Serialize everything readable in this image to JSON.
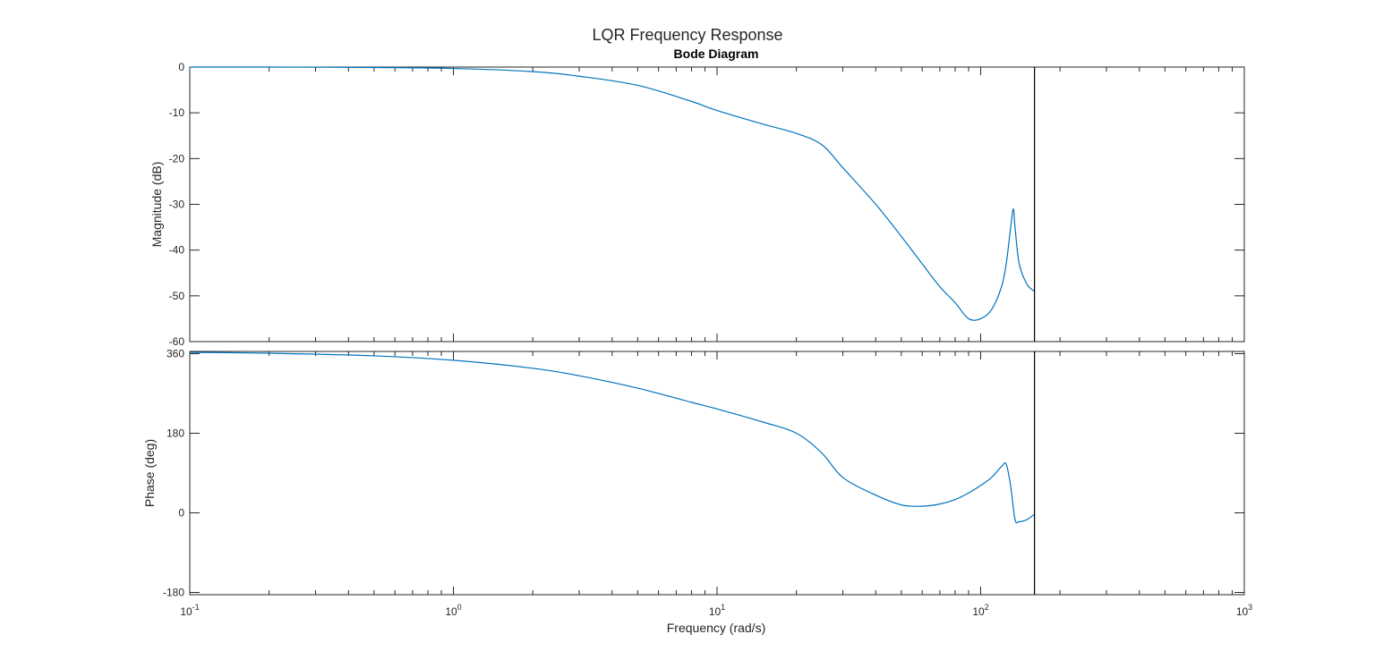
{
  "figure": {
    "title": "LQR Frequency Response",
    "subtitle": "Bode Diagram"
  },
  "colors": {
    "line": "#0072BD",
    "axes": "#262626",
    "marker_line": "#000000"
  },
  "chart_data": {
    "type": "line",
    "title": "LQR Frequency Response",
    "subtitle": "Bode Diagram",
    "xlabel": "Frequency  (rad/s)",
    "xscale": "log",
    "xlim": [
      0.1,
      1000
    ],
    "x_tick_labels": [
      {
        "base": "10",
        "exp": "-1",
        "value": 0.1
      },
      {
        "base": "10",
        "exp": "0",
        "value": 1
      },
      {
        "base": "10",
        "exp": "1",
        "value": 10
      },
      {
        "base": "10",
        "exp": "2",
        "value": 100
      },
      {
        "base": "10",
        "exp": "3",
        "value": 1000
      }
    ],
    "vertical_marker_x": 160,
    "grid": false,
    "panels": [
      {
        "name": "magnitude",
        "ylabel": "Magnitude (dB)",
        "ylim": [
          -60,
          0
        ],
        "yticks": [
          0,
          -10,
          -20,
          -30,
          -40,
          -50,
          -60
        ],
        "ytick_labels": [
          "0",
          "-10",
          "-20",
          "-30",
          "-40",
          "-50",
          "-60"
        ],
        "x": [
          0.1,
          0.2,
          0.5,
          1,
          2,
          3,
          5,
          8,
          10,
          15,
          20,
          25,
          30,
          40,
          50,
          60,
          70,
          80,
          90,
          100,
          110,
          120,
          125,
          130,
          133,
          135,
          140,
          150,
          160
        ],
        "y": [
          0,
          0,
          -0.1,
          -0.3,
          -1,
          -2,
          -4,
          -7.5,
          -9.5,
          -12.5,
          -14.5,
          -17,
          -22,
          -30,
          -37,
          -43,
          -48,
          -51.5,
          -55,
          -55,
          -53,
          -48,
          -43,
          -35,
          -31,
          -35,
          -43,
          -47.5,
          -49
        ]
      },
      {
        "name": "phase",
        "ylabel": "Phase (deg)",
        "ylim": [
          -185,
          365
        ],
        "yticks": [
          360,
          180,
          0,
          -180
        ],
        "ytick_labels": [
          "360",
          "180",
          "0",
          "-180"
        ],
        "x": [
          0.1,
          0.2,
          0.5,
          1,
          2,
          3,
          5,
          8,
          10,
          15,
          20,
          25,
          30,
          40,
          50,
          60,
          70,
          80,
          90,
          100,
          110,
          120,
          125,
          130,
          135,
          140,
          150,
          160
        ],
        "y": [
          363,
          361,
          355,
          345,
          327,
          310,
          282,
          250,
          235,
          205,
          180,
          135,
          80,
          40,
          18,
          15,
          20,
          30,
          45,
          62,
          80,
          105,
          110,
          60,
          -15,
          -20,
          -15,
          -3
        ]
      }
    ]
  }
}
